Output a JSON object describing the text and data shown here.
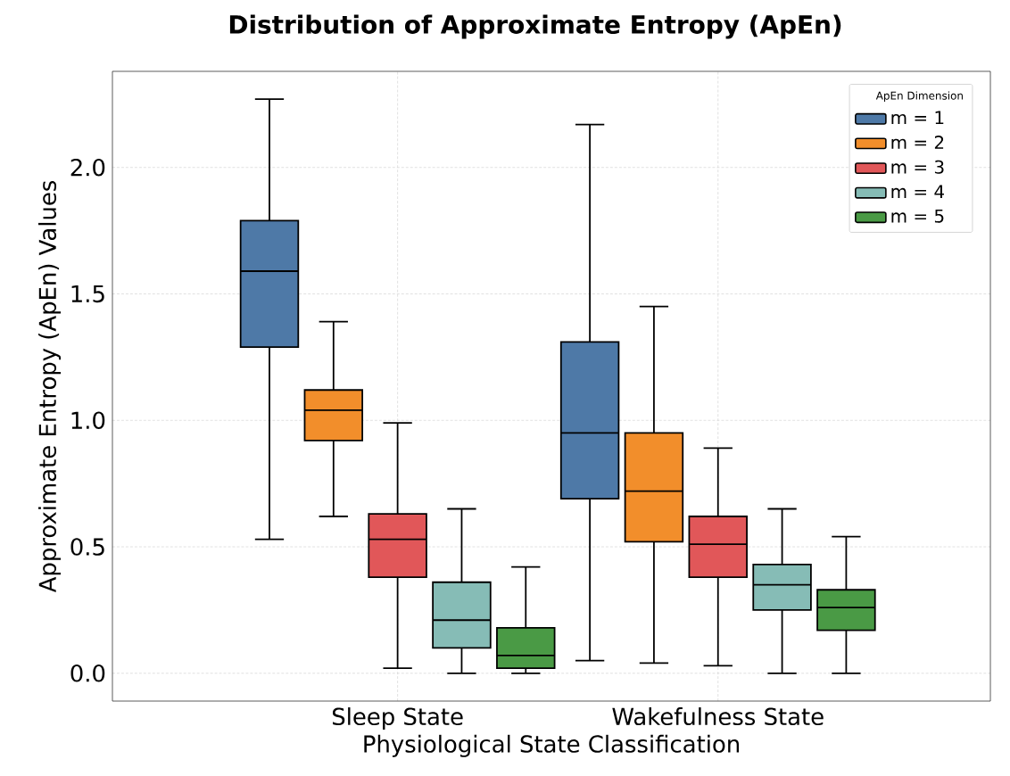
{
  "chart_data": {
    "type": "box",
    "title": "Distribution of Approximate Entropy (ApEn)",
    "xlabel": "Physiological State Classification",
    "ylabel": "Approximate Entropy (ApEn) Values",
    "legend_title": "ApEn Dimension",
    "categories": [
      "Sleep State",
      "Wakefulness State"
    ],
    "series": [
      {
        "name": "m = 1",
        "color": "#4e79a7",
        "boxes": [
          {
            "low": 0.53,
            "q1": 1.29,
            "median": 1.59,
            "q3": 1.79,
            "high": 2.27
          },
          {
            "low": 0.05,
            "q1": 0.69,
            "median": 0.95,
            "q3": 1.31,
            "high": 2.17
          }
        ]
      },
      {
        "name": "m = 2",
        "color": "#f28e2b",
        "boxes": [
          {
            "low": 0.62,
            "q1": 0.92,
            "median": 1.04,
            "q3": 1.12,
            "high": 1.39
          },
          {
            "low": 0.04,
            "q1": 0.52,
            "median": 0.72,
            "q3": 0.95,
            "high": 1.45
          }
        ]
      },
      {
        "name": "m = 3",
        "color": "#e15759",
        "boxes": [
          {
            "low": 0.02,
            "q1": 0.38,
            "median": 0.53,
            "q3": 0.63,
            "high": 0.99
          },
          {
            "low": 0.03,
            "q1": 0.38,
            "median": 0.51,
            "q3": 0.62,
            "high": 0.89
          }
        ]
      },
      {
        "name": "m = 4",
        "color": "#86bcb6",
        "boxes": [
          {
            "low": 0.0,
            "q1": 0.1,
            "median": 0.21,
            "q3": 0.36,
            "high": 0.65
          },
          {
            "low": 0.0,
            "q1": 0.25,
            "median": 0.35,
            "q3": 0.43,
            "high": 0.65
          }
        ]
      },
      {
        "name": "m = 5",
        "color": "#4a9a45",
        "boxes": [
          {
            "low": 0.0,
            "q1": 0.02,
            "median": 0.07,
            "q3": 0.18,
            "high": 0.42
          },
          {
            "low": 0.0,
            "q1": 0.17,
            "median": 0.26,
            "q3": 0.33,
            "high": 0.54
          }
        ]
      }
    ],
    "ylim": [
      -0.11,
      2.38
    ],
    "yticks": [
      {
        "value": 0,
        "label": "0.0"
      },
      0.5,
      {
        "value": 1,
        "label": "1.0"
      },
      1.5,
      {
        "value": 2,
        "label": "2.0"
      }
    ],
    "grid": true,
    "legend": "top right"
  }
}
